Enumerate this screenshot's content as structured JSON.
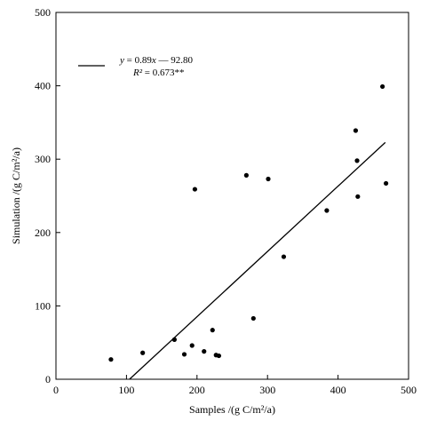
{
  "chart_data": {
    "type": "scatter",
    "title": "",
    "xlabel": "Samples /(g C/m²/a)",
    "ylabel": "Simulation /(g C/m²/a)",
    "xlim": [
      0,
      500
    ],
    "ylim": [
      0,
      500
    ],
    "xticks": [
      "0",
      "100",
      "200",
      "300",
      "400",
      "500"
    ],
    "yticks": [
      "0",
      "100",
      "200",
      "300",
      "400",
      "500"
    ],
    "grid": false,
    "legend_position": "top-left",
    "legend": {
      "eq_lhs": "y",
      "eq_rhs": " = 0.89",
      "eq_x": "x",
      "eq_tail": " — 92.80",
      "r2_lhs": "R²",
      "r2_rhs": " = 0.673**"
    },
    "points": [
      {
        "x": 78,
        "y": 27
      },
      {
        "x": 123,
        "y": 36
      },
      {
        "x": 168,
        "y": 54
      },
      {
        "x": 182,
        "y": 34
      },
      {
        "x": 193,
        "y": 46
      },
      {
        "x": 197,
        "y": 259
      },
      {
        "x": 210,
        "y": 38
      },
      {
        "x": 222,
        "y": 67
      },
      {
        "x": 227,
        "y": 33
      },
      {
        "x": 231,
        "y": 32
      },
      {
        "x": 270,
        "y": 278
      },
      {
        "x": 280,
        "y": 83
      },
      {
        "x": 301,
        "y": 273
      },
      {
        "x": 323,
        "y": 167
      },
      {
        "x": 384,
        "y": 230
      },
      {
        "x": 425,
        "y": 339
      },
      {
        "x": 427,
        "y": 298
      },
      {
        "x": 428,
        "y": 249
      },
      {
        "x": 463,
        "y": 399
      },
      {
        "x": 468,
        "y": 267
      }
    ],
    "fit_line": {
      "slope": 0.89,
      "intercept": -92.8,
      "x_range": [
        104.3,
        467
      ]
    },
    "colors": {
      "points": "#000000",
      "line": "#000000",
      "axes": "#000000"
    }
  }
}
